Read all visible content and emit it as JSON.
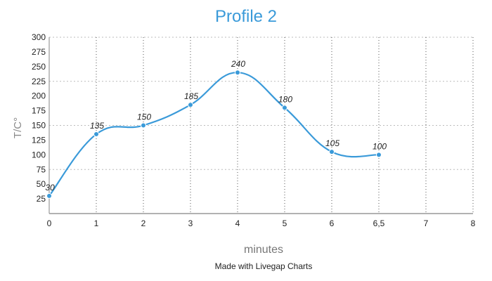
{
  "chart_data": {
    "type": "line",
    "title": "Profile 2",
    "xlabel": "minutes",
    "ylabel": "T/C°",
    "categories": [
      "0",
      "1",
      "2",
      "3",
      "4",
      "5",
      "6",
      "6,5",
      "7",
      "8"
    ],
    "x": [
      "0",
      "1",
      "2",
      "3",
      "4",
      "5",
      "6",
      "6,5"
    ],
    "series": [
      {
        "name": "Profile 2",
        "values": [
          30,
          135,
          150,
          185,
          240,
          180,
          105,
          100
        ],
        "color": "#3a9ad9"
      }
    ],
    "data_labels": [
      "30",
      "135",
      "150",
      "185",
      "240",
      "180",
      "105",
      "100"
    ],
    "yticks": [
      25,
      50,
      75,
      100,
      125,
      150,
      175,
      200,
      225,
      250,
      275,
      300
    ],
    "ylim": [
      0,
      300
    ],
    "grid": {
      "horizontal_at": [
        75,
        150,
        225,
        300
      ],
      "vertical": true,
      "style": "dotted"
    },
    "smooth": true
  },
  "footer": {
    "credit": "Made with Livegap Charts"
  },
  "colors": {
    "accent": "#3a9ad9",
    "grid": "#bbbbbb",
    "axis": "#999999"
  }
}
